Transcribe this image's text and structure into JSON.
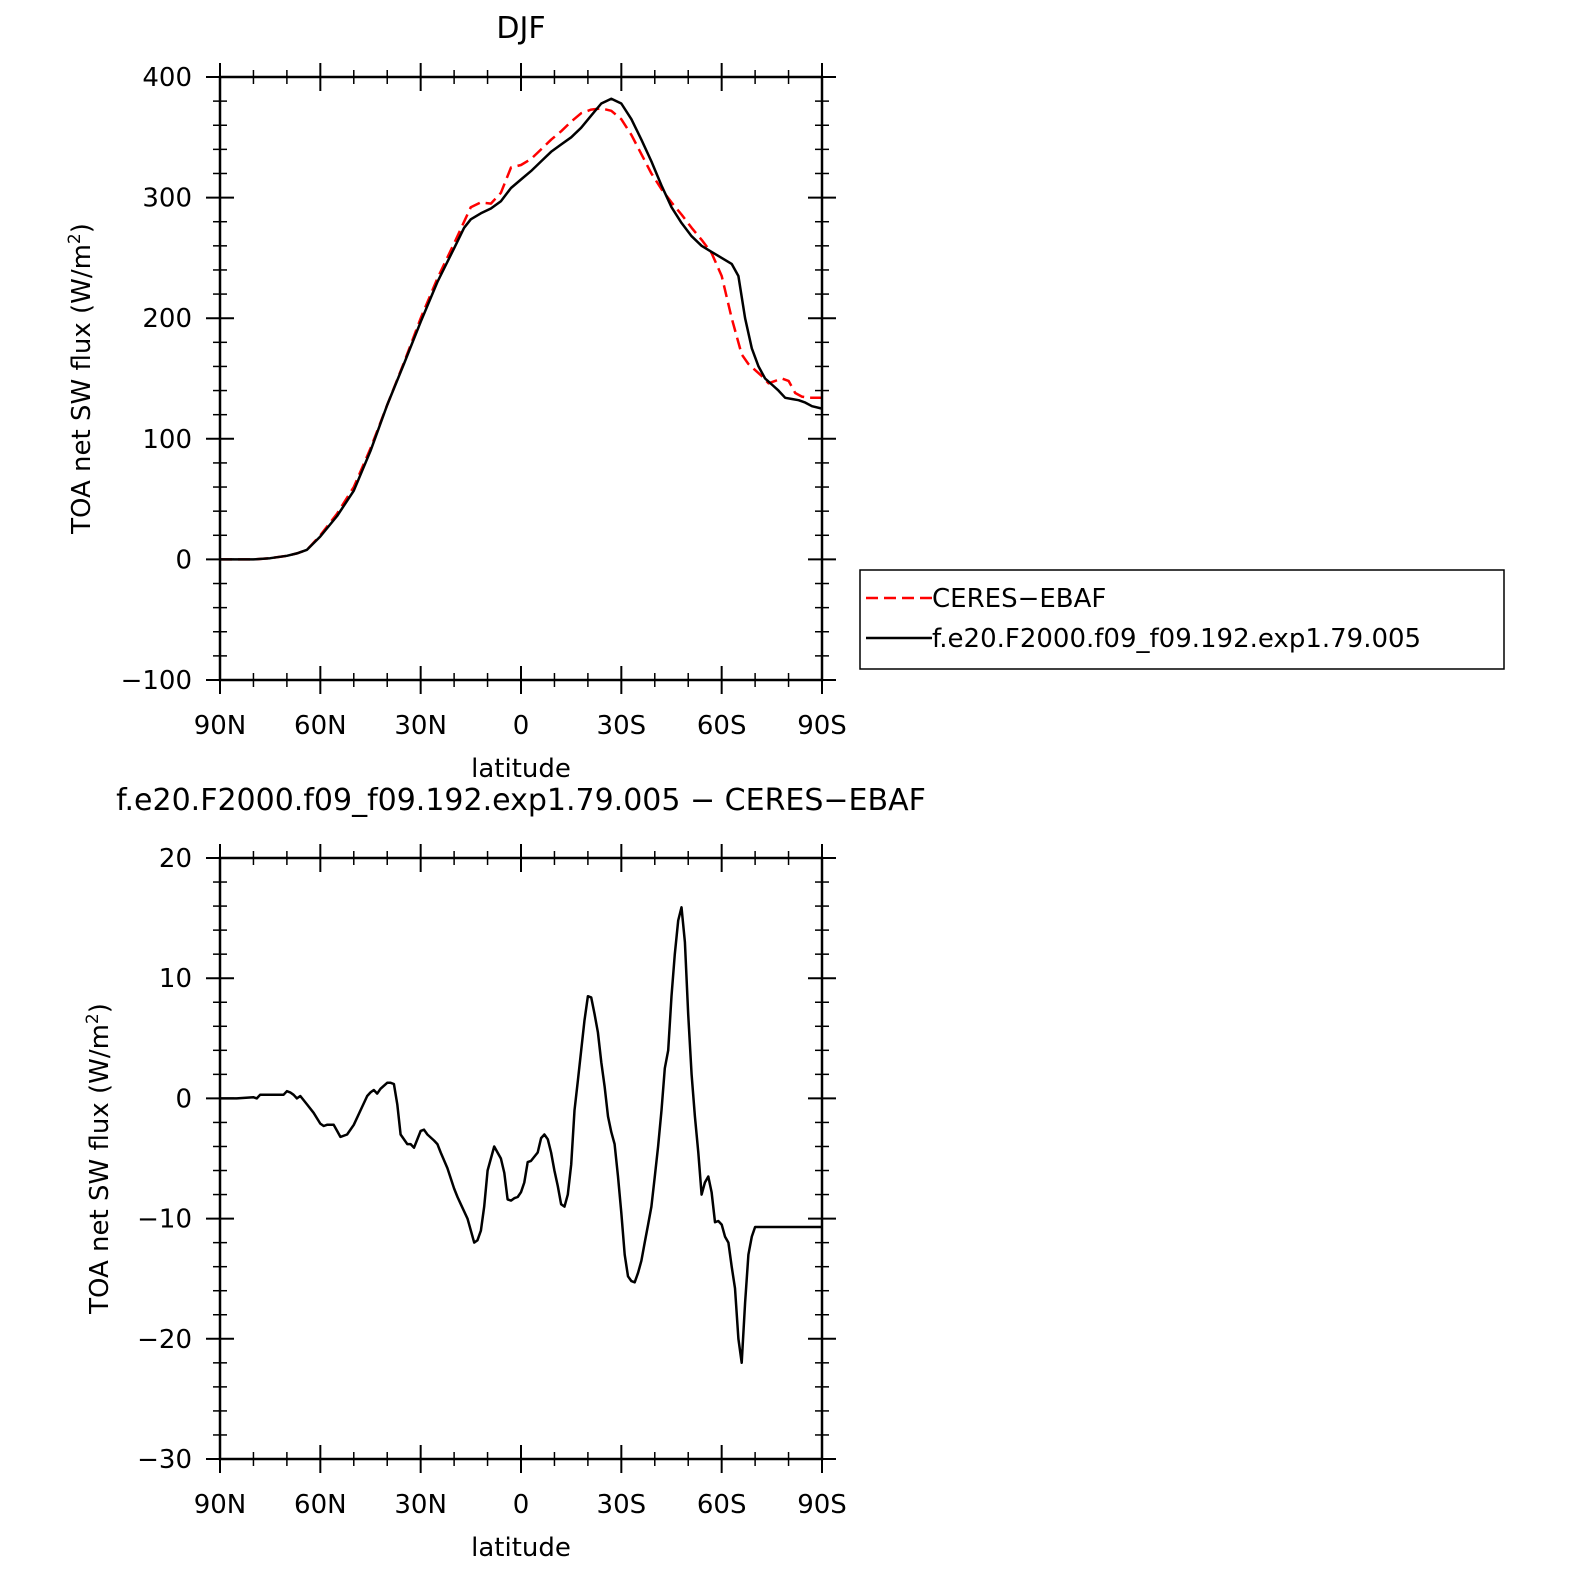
{
  "chart_data": [
    {
      "type": "line",
      "title": "DJF",
      "xlabel": "latitude",
      "ylabel": "TOA net SW flux (W/m²)",
      "ylabel_main": "TOA net SW flux (W/m",
      "ylabel_sup": "2",
      "ylabel_end": ")",
      "xlim": [
        -90,
        90
      ],
      "ylim": [
        -100,
        400
      ],
      "x_ticks": [
        -90,
        -60,
        -30,
        0,
        30,
        60,
        90
      ],
      "x_tick_labels": [
        "90N",
        "60N",
        "30N",
        "0",
        "30S",
        "60S",
        "90S"
      ],
      "y_ticks": [
        -100,
        0,
        100,
        200,
        300,
        400
      ],
      "y_tick_labels": [
        "−100",
        "0",
        "100",
        "200",
        "300",
        "400"
      ],
      "legend_placement": "outside-right",
      "series": [
        {
          "name": "CERES−EBAF",
          "color": "#ff0000",
          "dash": "dashed",
          "x": [
            -90,
            -85,
            -80,
            -75,
            -70,
            -67,
            -64,
            -60,
            -55,
            -50,
            -45,
            -40,
            -35,
            -30,
            -25,
            -20,
            -17,
            -15,
            -12,
            -9,
            -6,
            -3,
            0,
            3,
            6,
            9,
            12,
            15,
            18,
            21,
            24,
            27,
            30,
            33,
            36,
            39,
            42,
            45,
            48,
            51,
            54,
            57,
            60,
            63,
            66,
            68,
            70,
            72,
            74,
            76,
            78,
            80,
            82,
            84,
            86,
            88,
            90
          ],
          "y": [
            0,
            0,
            0,
            1,
            3,
            5,
            8,
            20,
            38,
            60,
            92,
            128,
            163,
            200,
            233,
            262,
            280,
            292,
            296,
            295,
            304,
            325,
            327,
            332,
            340,
            348,
            355,
            363,
            370,
            373,
            374,
            372,
            365,
            352,
            336,
            320,
            307,
            296,
            286,
            275,
            265,
            254,
            235,
            200,
            170,
            162,
            157,
            152,
            146,
            148,
            150,
            148,
            138,
            135,
            134,
            134,
            134
          ]
        },
        {
          "name": "f.e20.F2000.f09_f09.192.exp1.79.005",
          "color": "#000000",
          "dash": "solid",
          "x": [
            -90,
            -85,
            -80,
            -75,
            -70,
            -67,
            -64,
            -60,
            -55,
            -50,
            -45,
            -40,
            -35,
            -30,
            -25,
            -20,
            -17,
            -15,
            -12,
            -9,
            -6,
            -3,
            0,
            3,
            6,
            9,
            12,
            15,
            18,
            21,
            24,
            27,
            30,
            33,
            36,
            39,
            42,
            45,
            48,
            51,
            54,
            57,
            60,
            63,
            65,
            67,
            69,
            71,
            73,
            75,
            77,
            79,
            81,
            83,
            85,
            87,
            90
          ],
          "y": [
            0,
            0,
            0,
            1,
            3,
            5,
            8,
            19,
            36,
            57,
            90,
            128,
            162,
            197,
            230,
            258,
            275,
            282,
            287,
            291,
            297,
            308,
            315,
            322,
            330,
            338,
            344,
            350,
            358,
            368,
            378,
            382,
            378,
            365,
            348,
            330,
            310,
            292,
            279,
            268,
            260,
            255,
            250,
            245,
            235,
            200,
            175,
            160,
            150,
            145,
            140,
            134,
            133,
            132,
            130,
            127,
            125
          ]
        }
      ]
    },
    {
      "type": "line",
      "title": "f.e20.F2000.f09_f09.192.exp1.79.005 − CERES−EBAF",
      "xlabel": "latitude",
      "ylabel": "TOA net SW flux (W/m²)",
      "ylabel_main": "TOA net SW flux (W/m",
      "ylabel_sup": "2",
      "ylabel_end": ")",
      "xlim": [
        -90,
        90
      ],
      "ylim": [
        -30,
        20
      ],
      "x_ticks": [
        -90,
        -60,
        -30,
        0,
        30,
        60,
        90
      ],
      "x_tick_labels": [
        "90N",
        "60N",
        "30N",
        "0",
        "30S",
        "60S",
        "90S"
      ],
      "y_ticks": [
        -30,
        -20,
        -10,
        0,
        10,
        20
      ],
      "y_tick_labels": [
        "−30",
        "−20",
        "−10",
        "0",
        "10",
        "20"
      ],
      "series": [
        {
          "name": "",
          "color": "#000000",
          "dash": "solid",
          "x": [
            -90,
            -85,
            -80,
            -79,
            -78,
            -75,
            -71,
            -70,
            -69,
            -68,
            -67,
            -66,
            -64,
            -62,
            -60,
            -59,
            -58,
            -56,
            -55,
            -54,
            -52,
            -50,
            -48,
            -46,
            -45,
            -44,
            -43,
            -42,
            -40,
            -39,
            -38,
            -37,
            -36,
            -34,
            -33,
            -32,
            -30,
            -29,
            -28,
            -26,
            -25,
            -24,
            -22,
            -20,
            -19,
            -18,
            -16,
            -14,
            -13,
            -12,
            -11,
            -10,
            -8,
            -6,
            -5,
            -4,
            -3,
            -2,
            -1,
            0,
            1,
            2,
            3,
            5,
            6,
            7,
            8,
            9,
            10,
            11,
            12,
            13,
            14,
            15,
            16,
            17,
            18,
            19,
            20,
            21,
            22,
            23,
            24,
            25,
            26,
            27,
            28,
            29,
            30,
            31,
            32,
            33,
            34,
            35,
            36,
            37,
            38,
            39,
            40,
            41,
            42,
            43,
            44,
            45,
            46,
            47,
            48,
            49,
            50,
            51,
            52,
            53,
            54,
            55,
            56,
            57,
            58,
            59,
            60,
            61,
            62,
            63,
            64,
            65,
            66,
            67,
            68,
            69,
            70,
            71,
            72,
            73,
            74,
            75,
            76,
            77,
            78,
            79,
            80,
            81,
            82,
            83,
            84,
            85,
            86,
            87,
            88,
            89,
            90
          ],
          "y": [
            0,
            0,
            0.1,
            0,
            0.3,
            0.3,
            0.3,
            0.6,
            0.5,
            0.3,
            0,
            0.2,
            -0.5,
            -1.2,
            -2.1,
            -2.3,
            -2.2,
            -2.2,
            -2.7,
            -3.2,
            -3.0,
            -2.2,
            -1.0,
            0.2,
            0.5,
            0.7,
            0.4,
            0.8,
            1.3,
            1.3,
            1.2,
            -0.5,
            -3.0,
            -3.8,
            -3.8,
            -4.1,
            -2.7,
            -2.6,
            -3.0,
            -3.5,
            -3.8,
            -4.5,
            -5.8,
            -7.5,
            -8.2,
            -8.8,
            -10.0,
            -12.0,
            -11.8,
            -11.0,
            -9.0,
            -6.0,
            -4.0,
            -5.0,
            -6.2,
            -8.4,
            -8.5,
            -8.3,
            -8.2,
            -7.8,
            -7.0,
            -5.3,
            -5.2,
            -4.5,
            -3.3,
            -3.0,
            -3.4,
            -4.5,
            -6.0,
            -7.3,
            -8.8,
            -9.0,
            -8.0,
            -5.5,
            -1.0,
            1.5,
            4.0,
            6.5,
            8.5,
            8.4,
            7.0,
            5.5,
            3.0,
            1.0,
            -1.5,
            -2.8,
            -3.8,
            -6.5,
            -9.5,
            -13.0,
            -14.8,
            -15.2,
            -15.3,
            -14.5,
            -13.5,
            -12.0,
            -10.5,
            -9.0,
            -6.5,
            -4.0,
            -1.0,
            2.5,
            4.0,
            8.5,
            12.0,
            14.8,
            15.9,
            13.0,
            7.0,
            2.0,
            -1.5,
            -4.5,
            -8.0,
            -7.0,
            -6.5,
            -7.8,
            -10.3,
            -10.2,
            -10.5,
            -11.5,
            -12.0,
            -14.0,
            -15.8,
            -20.0,
            -22.0,
            -17.0,
            -13.0,
            -11.5,
            -10.7,
            -10.7,
            -10.7,
            -10.7,
            -10.7,
            -10.7,
            -10.7,
            -10.7,
            -10.7,
            -10.7,
            -10.7,
            -10.7,
            -10.7,
            -10.7,
            -10.7,
            -10.7,
            -10.7,
            -10.7,
            -10.7,
            -10.7,
            -10.7
          ]
        }
      ]
    }
  ]
}
